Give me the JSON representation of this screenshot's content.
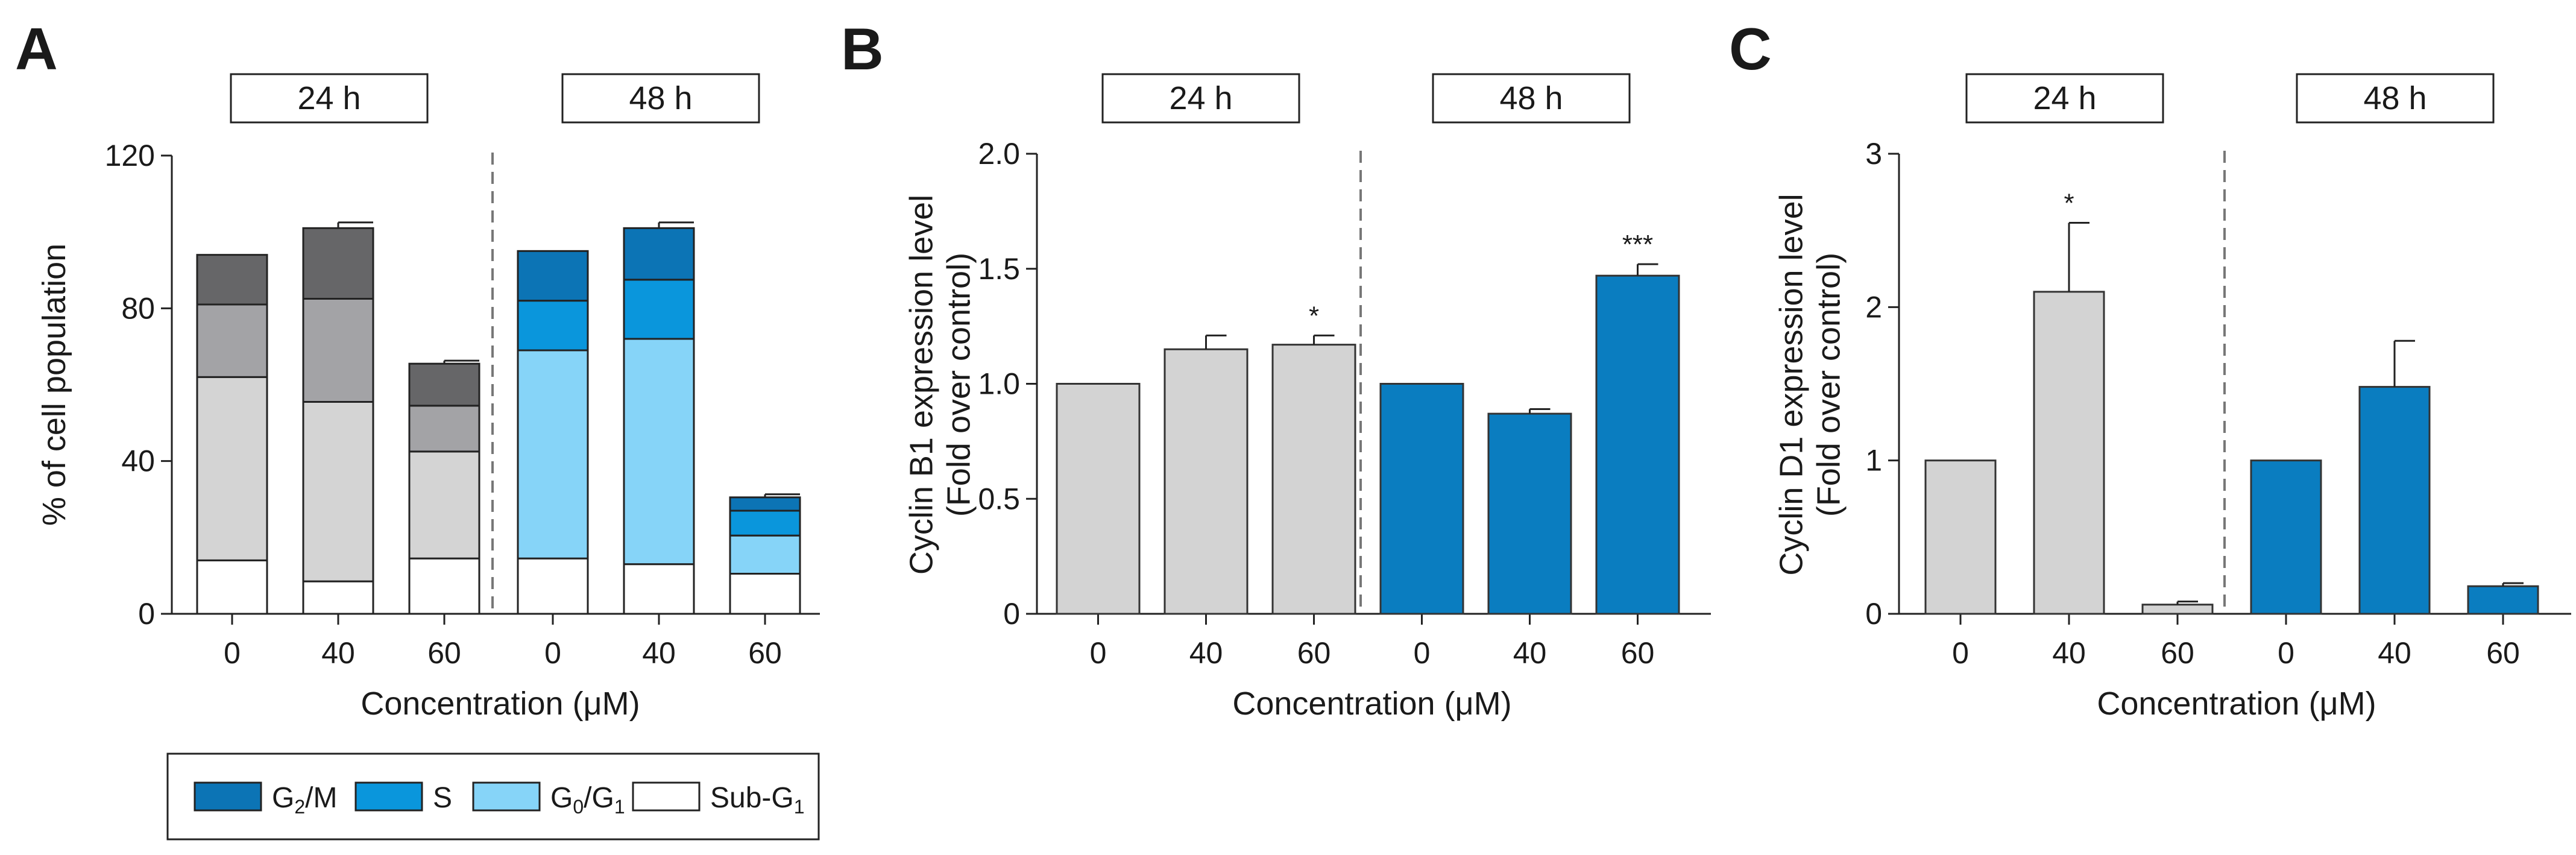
{
  "chart_data": [
    {
      "panel": "A",
      "type": "bar",
      "stacked": true,
      "title": "",
      "periods": [
        "24 h",
        "48 h"
      ],
      "categories": [
        "0",
        "40",
        "60"
      ],
      "xlabel": "Concentration (μM)",
      "ylabel": "% of cell population",
      "ylim": [
        0,
        120
      ],
      "yticks": [
        0,
        40,
        80,
        120
      ],
      "groups": [
        {
          "period": "24 h",
          "colors": {
            "sub_g1": "#ffffff",
            "g0_g1": "#d4d4d4",
            "s": "#a3a3a6",
            "g2_m": "#666668"
          },
          "series": [
            {
              "name": "Sub-G1",
              "values": [
                14,
                8.5,
                14.5
              ],
              "errors": [
                0,
                0.8,
                0.6
              ]
            },
            {
              "name": "G0/G1",
              "values": [
                48,
                47,
                28
              ],
              "errors": [
                0,
                2,
                0.6
              ]
            },
            {
              "name": "S",
              "values": [
                19,
                27,
                12
              ],
              "errors": [
                0,
                1.5,
                0.6
              ]
            },
            {
              "name": "G2/M",
              "values": [
                13,
                18.5,
                11
              ],
              "errors": [
                0,
                1.5,
                0.8
              ]
            }
          ]
        },
        {
          "period": "48 h",
          "colors": {
            "sub_g1": "#ffffff",
            "g0_g1": "#86d4f8",
            "s": "#0a96dc",
            "g2_m": "#0c74b5"
          },
          "series": [
            {
              "name": "Sub-G1",
              "values": [
                14.5,
                13,
                10.5
              ],
              "errors": [
                0,
                0.8,
                1.5
              ]
            },
            {
              "name": "G0/G1",
              "values": [
                54.5,
                59,
                10
              ],
              "errors": [
                0,
                1.5,
                0.6
              ]
            },
            {
              "name": "S",
              "values": [
                13,
                15.5,
                6.5
              ],
              "errors": [
                0,
                1,
                0.8
              ]
            },
            {
              "name": "G2/M",
              "values": [
                13,
                13.5,
                3.5
              ],
              "errors": [
                0,
                1.5,
                0.8
              ]
            }
          ]
        }
      ],
      "legend": [
        {
          "key": "g2_m",
          "label": "G",
          "sub": "2",
          "rest": "/M"
        },
        {
          "key": "s",
          "label": "S",
          "sub": "",
          "rest": ""
        },
        {
          "key": "g0_g1",
          "label": "G",
          "sub": "0",
          "rest": "/G",
          "sub2": "1"
        },
        {
          "key": "sub_g1",
          "label": "Sub-G",
          "sub": "1",
          "rest": ""
        }
      ],
      "legend_colors": {
        "g2_m": "#0c74b5",
        "s": "#0a96dc",
        "g0_g1": "#86d4f8",
        "sub_g1": "#ffffff"
      },
      "legend_position": "bottom"
    },
    {
      "panel": "B",
      "type": "bar",
      "title": "",
      "periods": [
        "24 h",
        "48 h"
      ],
      "categories": [
        "0",
        "40",
        "60"
      ],
      "xlabel": "Concentration (μM)",
      "ylabel": [
        "Cyclin B1 expression level",
        "(Fold over control)"
      ],
      "ylim": [
        0,
        2.0
      ],
      "yticks": [
        "0",
        "0.5",
        "1.0",
        "1.5",
        "2.0"
      ],
      "series": [
        {
          "name": "24 h",
          "color": "#d3d3d3",
          "values": [
            1.0,
            1.15,
            1.17
          ],
          "errors": [
            0,
            0.06,
            0.04
          ],
          "sig": [
            "",
            "",
            "*"
          ]
        },
        {
          "name": "48 h",
          "color": "#0a7dc0",
          "values": [
            1.0,
            0.87,
            1.47
          ],
          "errors": [
            0,
            0.02,
            0.05
          ],
          "sig": [
            "",
            "",
            "***"
          ]
        }
      ]
    },
    {
      "panel": "C",
      "type": "bar",
      "title": "",
      "periods": [
        "24 h",
        "48 h"
      ],
      "categories": [
        "0",
        "40",
        "60"
      ],
      "xlabel": "Concentration (μM)",
      "ylabel": [
        "Cyclin D1 expression level",
        "(Fold over control)"
      ],
      "ylim": [
        0,
        3
      ],
      "yticks": [
        "0",
        "1",
        "2",
        "3"
      ],
      "series": [
        {
          "name": "24 h",
          "color": "#d3d3d3",
          "values": [
            1.0,
            2.1,
            0.06
          ],
          "errors": [
            0,
            0.45,
            0.02
          ],
          "sig": [
            "",
            "*",
            ""
          ]
        },
        {
          "name": "48 h",
          "color": "#0a7dc0",
          "values": [
            1.0,
            1.48,
            0.18
          ],
          "errors": [
            0,
            0.3,
            0.02
          ],
          "sig": [
            "",
            "",
            ""
          ]
        }
      ]
    }
  ]
}
